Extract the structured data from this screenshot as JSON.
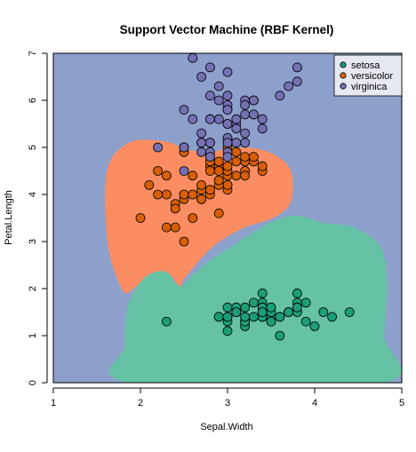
{
  "chart_data": {
    "type": "scatter",
    "title": "Support Vector Machine (RBF Kernel)",
    "xlabel": "Sepal.Width",
    "ylabel": "Petal.Length",
    "xlim": [
      1,
      5
    ],
    "ylim": [
      0,
      7
    ],
    "x_ticks": [
      "1",
      "2",
      "3",
      "4",
      "5"
    ],
    "y_ticks": [
      "0",
      "1",
      "2",
      "3",
      "4",
      "5",
      "6",
      "7"
    ],
    "legend_position": "top-right",
    "colors": {
      "background_region": "#8DA0CB",
      "versicolor_region": "#FC8D62",
      "setosa_region": "#66C2A5",
      "setosa": "#1B9E77",
      "versicolor": "#D95F02",
      "virginica": "#7570B3",
      "legend_bg": "#E6E8F2"
    },
    "decision_regions": [
      {
        "class": "versicolor",
        "outline": [
          [
            1.6,
            4.3
          ],
          [
            1.65,
            4.7
          ],
          [
            1.75,
            4.95
          ],
          [
            1.95,
            5.15
          ],
          [
            2.3,
            5.12
          ],
          [
            2.55,
            4.95
          ],
          [
            2.8,
            4.9
          ],
          [
            3.1,
            5.0
          ],
          [
            3.45,
            4.92
          ],
          [
            3.7,
            4.6
          ],
          [
            3.75,
            4.15
          ],
          [
            3.7,
            3.75
          ],
          [
            3.52,
            3.5
          ],
          [
            3.2,
            3.3
          ],
          [
            2.95,
            3.05
          ],
          [
            2.75,
            2.75
          ],
          [
            2.5,
            2.2
          ],
          [
            2.45,
            2.05
          ],
          [
            2.3,
            2.35
          ],
          [
            2.1,
            2.3
          ],
          [
            1.92,
            2.0
          ],
          [
            1.8,
            1.95
          ],
          [
            1.65,
            2.7
          ],
          [
            1.6,
            3.5
          ]
        ]
      },
      {
        "class": "setosa",
        "outline": [
          [
            1.85,
            1.55
          ],
          [
            1.95,
            2.0
          ],
          [
            2.1,
            2.3
          ],
          [
            2.3,
            2.35
          ],
          [
            2.45,
            2.05
          ],
          [
            2.6,
            2.3
          ],
          [
            2.8,
            2.6
          ],
          [
            3.05,
            2.9
          ],
          [
            3.3,
            3.2
          ],
          [
            3.55,
            3.45
          ],
          [
            3.8,
            3.55
          ],
          [
            4.1,
            3.4
          ],
          [
            4.45,
            3.3
          ],
          [
            4.75,
            2.9
          ],
          [
            4.83,
            2.2
          ],
          [
            4.8,
            1.0
          ],
          [
            4.78,
            0.0
          ],
          [
            1.88,
            0.0
          ],
          [
            1.82,
            0.8
          ]
        ]
      }
    ],
    "series": [
      {
        "name": "setosa",
        "points": [
          [
            3.5,
            1.4
          ],
          [
            3.0,
            1.4
          ],
          [
            3.2,
            1.3
          ],
          [
            3.1,
            1.5
          ],
          [
            3.6,
            1.4
          ],
          [
            3.9,
            1.7
          ],
          [
            3.4,
            1.4
          ],
          [
            3.4,
            1.5
          ],
          [
            2.9,
            1.4
          ],
          [
            3.1,
            1.5
          ],
          [
            3.7,
            1.5
          ],
          [
            3.4,
            1.6
          ],
          [
            3.0,
            1.4
          ],
          [
            3.0,
            1.1
          ],
          [
            4.0,
            1.2
          ],
          [
            4.4,
            1.5
          ],
          [
            3.9,
            1.3
          ],
          [
            3.5,
            1.4
          ],
          [
            3.8,
            1.7
          ],
          [
            3.8,
            1.5
          ],
          [
            3.4,
            1.7
          ],
          [
            3.7,
            1.5
          ],
          [
            3.6,
            1.0
          ],
          [
            3.3,
            1.7
          ],
          [
            3.4,
            1.9
          ],
          [
            3.0,
            1.6
          ],
          [
            3.4,
            1.6
          ],
          [
            3.5,
            1.5
          ],
          [
            3.4,
            1.4
          ],
          [
            3.2,
            1.6
          ],
          [
            3.1,
            1.6
          ],
          [
            3.4,
            1.5
          ],
          [
            4.1,
            1.5
          ],
          [
            4.2,
            1.4
          ],
          [
            3.1,
            1.5
          ],
          [
            3.2,
            1.2
          ],
          [
            3.5,
            1.3
          ],
          [
            3.6,
            1.4
          ],
          [
            3.0,
            1.3
          ],
          [
            3.4,
            1.5
          ],
          [
            3.5,
            1.3
          ],
          [
            2.3,
            1.3
          ],
          [
            3.2,
            1.3
          ],
          [
            3.5,
            1.6
          ],
          [
            3.8,
            1.9
          ],
          [
            3.0,
            1.4
          ],
          [
            3.8,
            1.6
          ],
          [
            3.2,
            1.4
          ],
          [
            3.7,
            1.5
          ],
          [
            3.3,
            1.4
          ],
          [
            2.9,
            1.4
          ]
        ]
      },
      {
        "name": "versicolor",
        "points": [
          [
            3.2,
            4.7
          ],
          [
            3.2,
            4.5
          ],
          [
            3.1,
            4.9
          ],
          [
            2.3,
            4.0
          ],
          [
            2.8,
            4.6
          ],
          [
            2.8,
            4.5
          ],
          [
            3.3,
            4.7
          ],
          [
            2.4,
            3.3
          ],
          [
            2.9,
            4.6
          ],
          [
            2.7,
            3.9
          ],
          [
            2.0,
            3.5
          ],
          [
            3.0,
            4.2
          ],
          [
            2.2,
            4.0
          ],
          [
            2.9,
            4.7
          ],
          [
            2.9,
            3.6
          ],
          [
            3.1,
            4.4
          ],
          [
            3.0,
            4.5
          ],
          [
            2.7,
            4.1
          ],
          [
            2.2,
            4.5
          ],
          [
            2.5,
            3.9
          ],
          [
            3.2,
            4.8
          ],
          [
            2.8,
            4.0
          ],
          [
            2.5,
            4.9
          ],
          [
            2.8,
            4.7
          ],
          [
            2.9,
            4.3
          ],
          [
            3.0,
            4.4
          ],
          [
            2.8,
            4.8
          ],
          [
            3.0,
            5.0
          ],
          [
            2.9,
            4.5
          ],
          [
            2.6,
            3.5
          ],
          [
            2.4,
            3.8
          ],
          [
            2.4,
            3.7
          ],
          [
            2.7,
            3.9
          ],
          [
            2.7,
            5.1
          ],
          [
            3.0,
            4.5
          ],
          [
            3.4,
            4.5
          ],
          [
            3.1,
            4.7
          ],
          [
            2.3,
            4.4
          ],
          [
            3.0,
            4.1
          ],
          [
            2.5,
            4.0
          ],
          [
            2.6,
            4.4
          ],
          [
            3.0,
            4.6
          ],
          [
            2.6,
            4.0
          ],
          [
            2.3,
            3.3
          ],
          [
            2.7,
            4.2
          ],
          [
            3.0,
            4.2
          ],
          [
            2.9,
            4.2
          ],
          [
            2.9,
            4.3
          ],
          [
            2.5,
            3.0
          ],
          [
            2.8,
            4.1
          ],
          [
            3.2,
            4.4
          ],
          [
            2.1,
            4.2
          ],
          [
            3.3,
            4.8
          ],
          [
            3.4,
            4.6
          ]
        ]
      },
      {
        "name": "virginica",
        "points": [
          [
            3.3,
            6.0
          ],
          [
            2.7,
            5.1
          ],
          [
            3.0,
            5.9
          ],
          [
            2.9,
            5.6
          ],
          [
            3.0,
            5.8
          ],
          [
            3.0,
            6.6
          ],
          [
            2.5,
            4.5
          ],
          [
            2.9,
            6.3
          ],
          [
            2.5,
            5.8
          ],
          [
            3.6,
            6.1
          ],
          [
            3.2,
            5.1
          ],
          [
            2.7,
            5.3
          ],
          [
            3.0,
            5.5
          ],
          [
            2.5,
            5.0
          ],
          [
            2.8,
            5.1
          ],
          [
            3.2,
            5.3
          ],
          [
            3.0,
            5.5
          ],
          [
            3.8,
            6.7
          ],
          [
            2.6,
            6.9
          ],
          [
            2.2,
            5.0
          ],
          [
            3.2,
            5.7
          ],
          [
            2.8,
            4.9
          ],
          [
            2.8,
            6.7
          ],
          [
            2.7,
            4.9
          ],
          [
            3.3,
            5.7
          ],
          [
            3.2,
            6.0
          ],
          [
            2.8,
            4.8
          ],
          [
            3.0,
            4.9
          ],
          [
            2.8,
            5.6
          ],
          [
            3.0,
            5.8
          ],
          [
            2.8,
            6.1
          ],
          [
            3.8,
            6.4
          ],
          [
            2.8,
            5.6
          ],
          [
            2.8,
            5.1
          ],
          [
            2.6,
            5.6
          ],
          [
            3.0,
            6.1
          ],
          [
            3.4,
            5.6
          ],
          [
            3.1,
            5.5
          ],
          [
            3.0,
            4.8
          ],
          [
            3.1,
            5.4
          ],
          [
            3.1,
            5.6
          ],
          [
            3.1,
            5.1
          ],
          [
            2.7,
            5.1
          ],
          [
            3.2,
            5.9
          ],
          [
            3.3,
            5.7
          ],
          [
            3.0,
            5.2
          ],
          [
            2.5,
            5.0
          ],
          [
            3.0,
            5.2
          ],
          [
            3.4,
            5.4
          ],
          [
            3.0,
            5.1
          ],
          [
            2.9,
            6.0
          ],
          [
            2.7,
            6.5
          ],
          [
            3.7,
            6.3
          ],
          [
            3.3,
            6.0
          ]
        ]
      }
    ]
  }
}
